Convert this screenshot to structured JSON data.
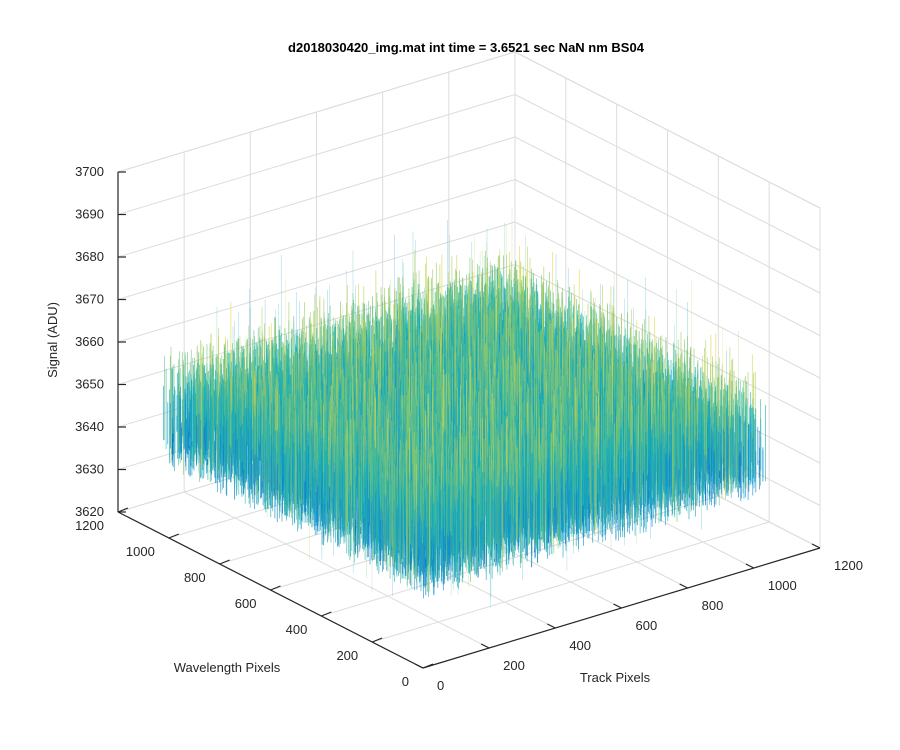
{
  "chart_data": {
    "type": "surface",
    "title": "d2018030420_img.mat int time = 3.6521 sec  NaN nm BS04",
    "xlabel": "Track Pixels",
    "ylabel": "Wavelength Pixels",
    "zlabel": "Signal (ADU)",
    "xlim": [
      0,
      1200
    ],
    "ylim": [
      0,
      1200
    ],
    "zlim": [
      3620,
      3700
    ],
    "x_ticks": [
      "0",
      "200",
      "400",
      "600",
      "800",
      "1000",
      "1200"
    ],
    "y_ticks": [
      "0",
      "200",
      "400",
      "600",
      "800",
      "1000",
      "1200"
    ],
    "z_ticks": [
      "3620",
      "3630",
      "3640",
      "3650",
      "3660",
      "3670",
      "3680",
      "3690",
      "3700"
    ],
    "data_extent": {
      "x": [
        0,
        1024
      ],
      "y": [
        0,
        1024
      ]
    },
    "signal_mean": 3655,
    "signal_range_typical": [
      3640,
      3670
    ],
    "grid": true,
    "colormap": "parula",
    "colors": {
      "low": "#0072BD",
      "mid": "#19B2B4",
      "high": "#E5D94A",
      "grid": "#DCDCDC",
      "axis": "#262626"
    }
  }
}
